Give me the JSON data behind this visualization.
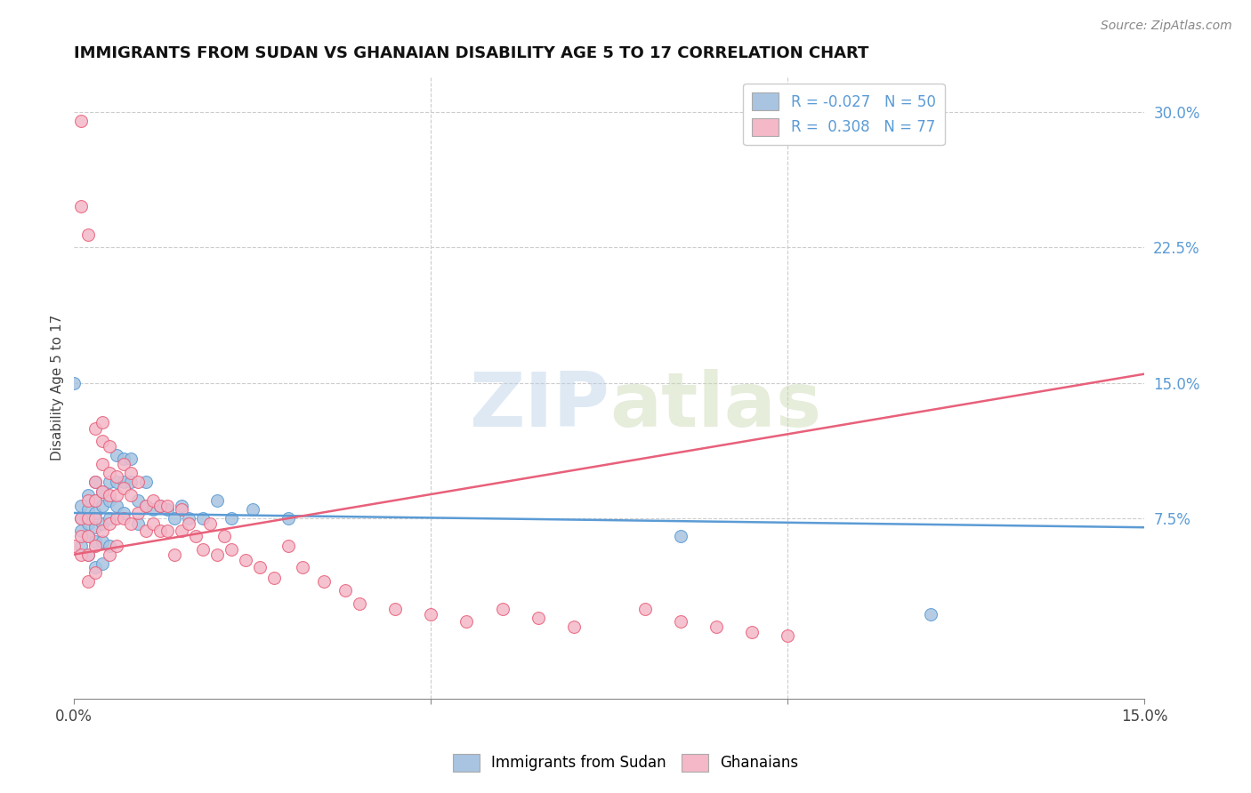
{
  "title": "IMMIGRANTS FROM SUDAN VS GHANAIAN DISABILITY AGE 5 TO 17 CORRELATION CHART",
  "source": "Source: ZipAtlas.com",
  "ylabel": "Disability Age 5 to 17",
  "xlim": [
    0.0,
    0.15
  ],
  "ylim": [
    -0.025,
    0.32
  ],
  "ytick_labels_right": [
    "7.5%",
    "15.0%",
    "22.5%",
    "30.0%"
  ],
  "ytick_positions_right": [
    0.075,
    0.15,
    0.225,
    0.3
  ],
  "color_blue": "#a8c4e0",
  "color_pink": "#f4b8c8",
  "line_color_blue": "#5b9bd5",
  "line_color_pink": "#e8607a",
  "watermark_zip": "ZIP",
  "watermark_atlas": "atlas",
  "sudan_x": [
    0.0,
    0.001,
    0.001,
    0.001,
    0.001,
    0.002,
    0.002,
    0.002,
    0.002,
    0.002,
    0.003,
    0.003,
    0.003,
    0.003,
    0.003,
    0.003,
    0.004,
    0.004,
    0.004,
    0.004,
    0.004,
    0.005,
    0.005,
    0.005,
    0.005,
    0.006,
    0.006,
    0.006,
    0.007,
    0.007,
    0.007,
    0.008,
    0.008,
    0.009,
    0.009,
    0.01,
    0.01,
    0.011,
    0.012,
    0.013,
    0.014,
    0.015,
    0.016,
    0.018,
    0.02,
    0.022,
    0.025,
    0.03,
    0.085,
    0.12
  ],
  "sudan_y": [
    0.15,
    0.082,
    0.075,
    0.068,
    0.06,
    0.088,
    0.08,
    0.072,
    0.065,
    0.055,
    0.095,
    0.085,
    0.078,
    0.07,
    0.062,
    0.048,
    0.09,
    0.082,
    0.072,
    0.062,
    0.05,
    0.095,
    0.085,
    0.075,
    0.06,
    0.11,
    0.095,
    0.082,
    0.108,
    0.095,
    0.078,
    0.108,
    0.095,
    0.085,
    0.072,
    0.095,
    0.082,
    0.08,
    0.082,
    0.08,
    0.075,
    0.082,
    0.075,
    0.075,
    0.085,
    0.075,
    0.08,
    0.075,
    0.065,
    0.022
  ],
  "ghana_x": [
    0.0,
    0.001,
    0.001,
    0.001,
    0.001,
    0.001,
    0.002,
    0.002,
    0.002,
    0.002,
    0.002,
    0.002,
    0.003,
    0.003,
    0.003,
    0.003,
    0.003,
    0.003,
    0.004,
    0.004,
    0.004,
    0.004,
    0.004,
    0.005,
    0.005,
    0.005,
    0.005,
    0.005,
    0.006,
    0.006,
    0.006,
    0.006,
    0.007,
    0.007,
    0.007,
    0.008,
    0.008,
    0.008,
    0.009,
    0.009,
    0.01,
    0.01,
    0.011,
    0.011,
    0.012,
    0.012,
    0.013,
    0.013,
    0.014,
    0.015,
    0.015,
    0.016,
    0.017,
    0.018,
    0.019,
    0.02,
    0.021,
    0.022,
    0.024,
    0.026,
    0.028,
    0.03,
    0.032,
    0.035,
    0.038,
    0.04,
    0.045,
    0.05,
    0.055,
    0.06,
    0.065,
    0.07,
    0.08,
    0.085,
    0.09,
    0.095,
    0.1
  ],
  "ghana_y": [
    0.06,
    0.295,
    0.248,
    0.075,
    0.065,
    0.055,
    0.232,
    0.085,
    0.075,
    0.065,
    0.055,
    0.04,
    0.125,
    0.095,
    0.085,
    0.075,
    0.06,
    0.045,
    0.128,
    0.118,
    0.105,
    0.09,
    0.068,
    0.115,
    0.1,
    0.088,
    0.072,
    0.055,
    0.098,
    0.088,
    0.075,
    0.06,
    0.105,
    0.092,
    0.075,
    0.1,
    0.088,
    0.072,
    0.095,
    0.078,
    0.082,
    0.068,
    0.085,
    0.072,
    0.082,
    0.068,
    0.082,
    0.068,
    0.055,
    0.08,
    0.068,
    0.072,
    0.065,
    0.058,
    0.072,
    0.055,
    0.065,
    0.058,
    0.052,
    0.048,
    0.042,
    0.06,
    0.048,
    0.04,
    0.035,
    0.028,
    0.025,
    0.022,
    0.018,
    0.025,
    0.02,
    0.015,
    0.025,
    0.018,
    0.015,
    0.012,
    0.01
  ]
}
